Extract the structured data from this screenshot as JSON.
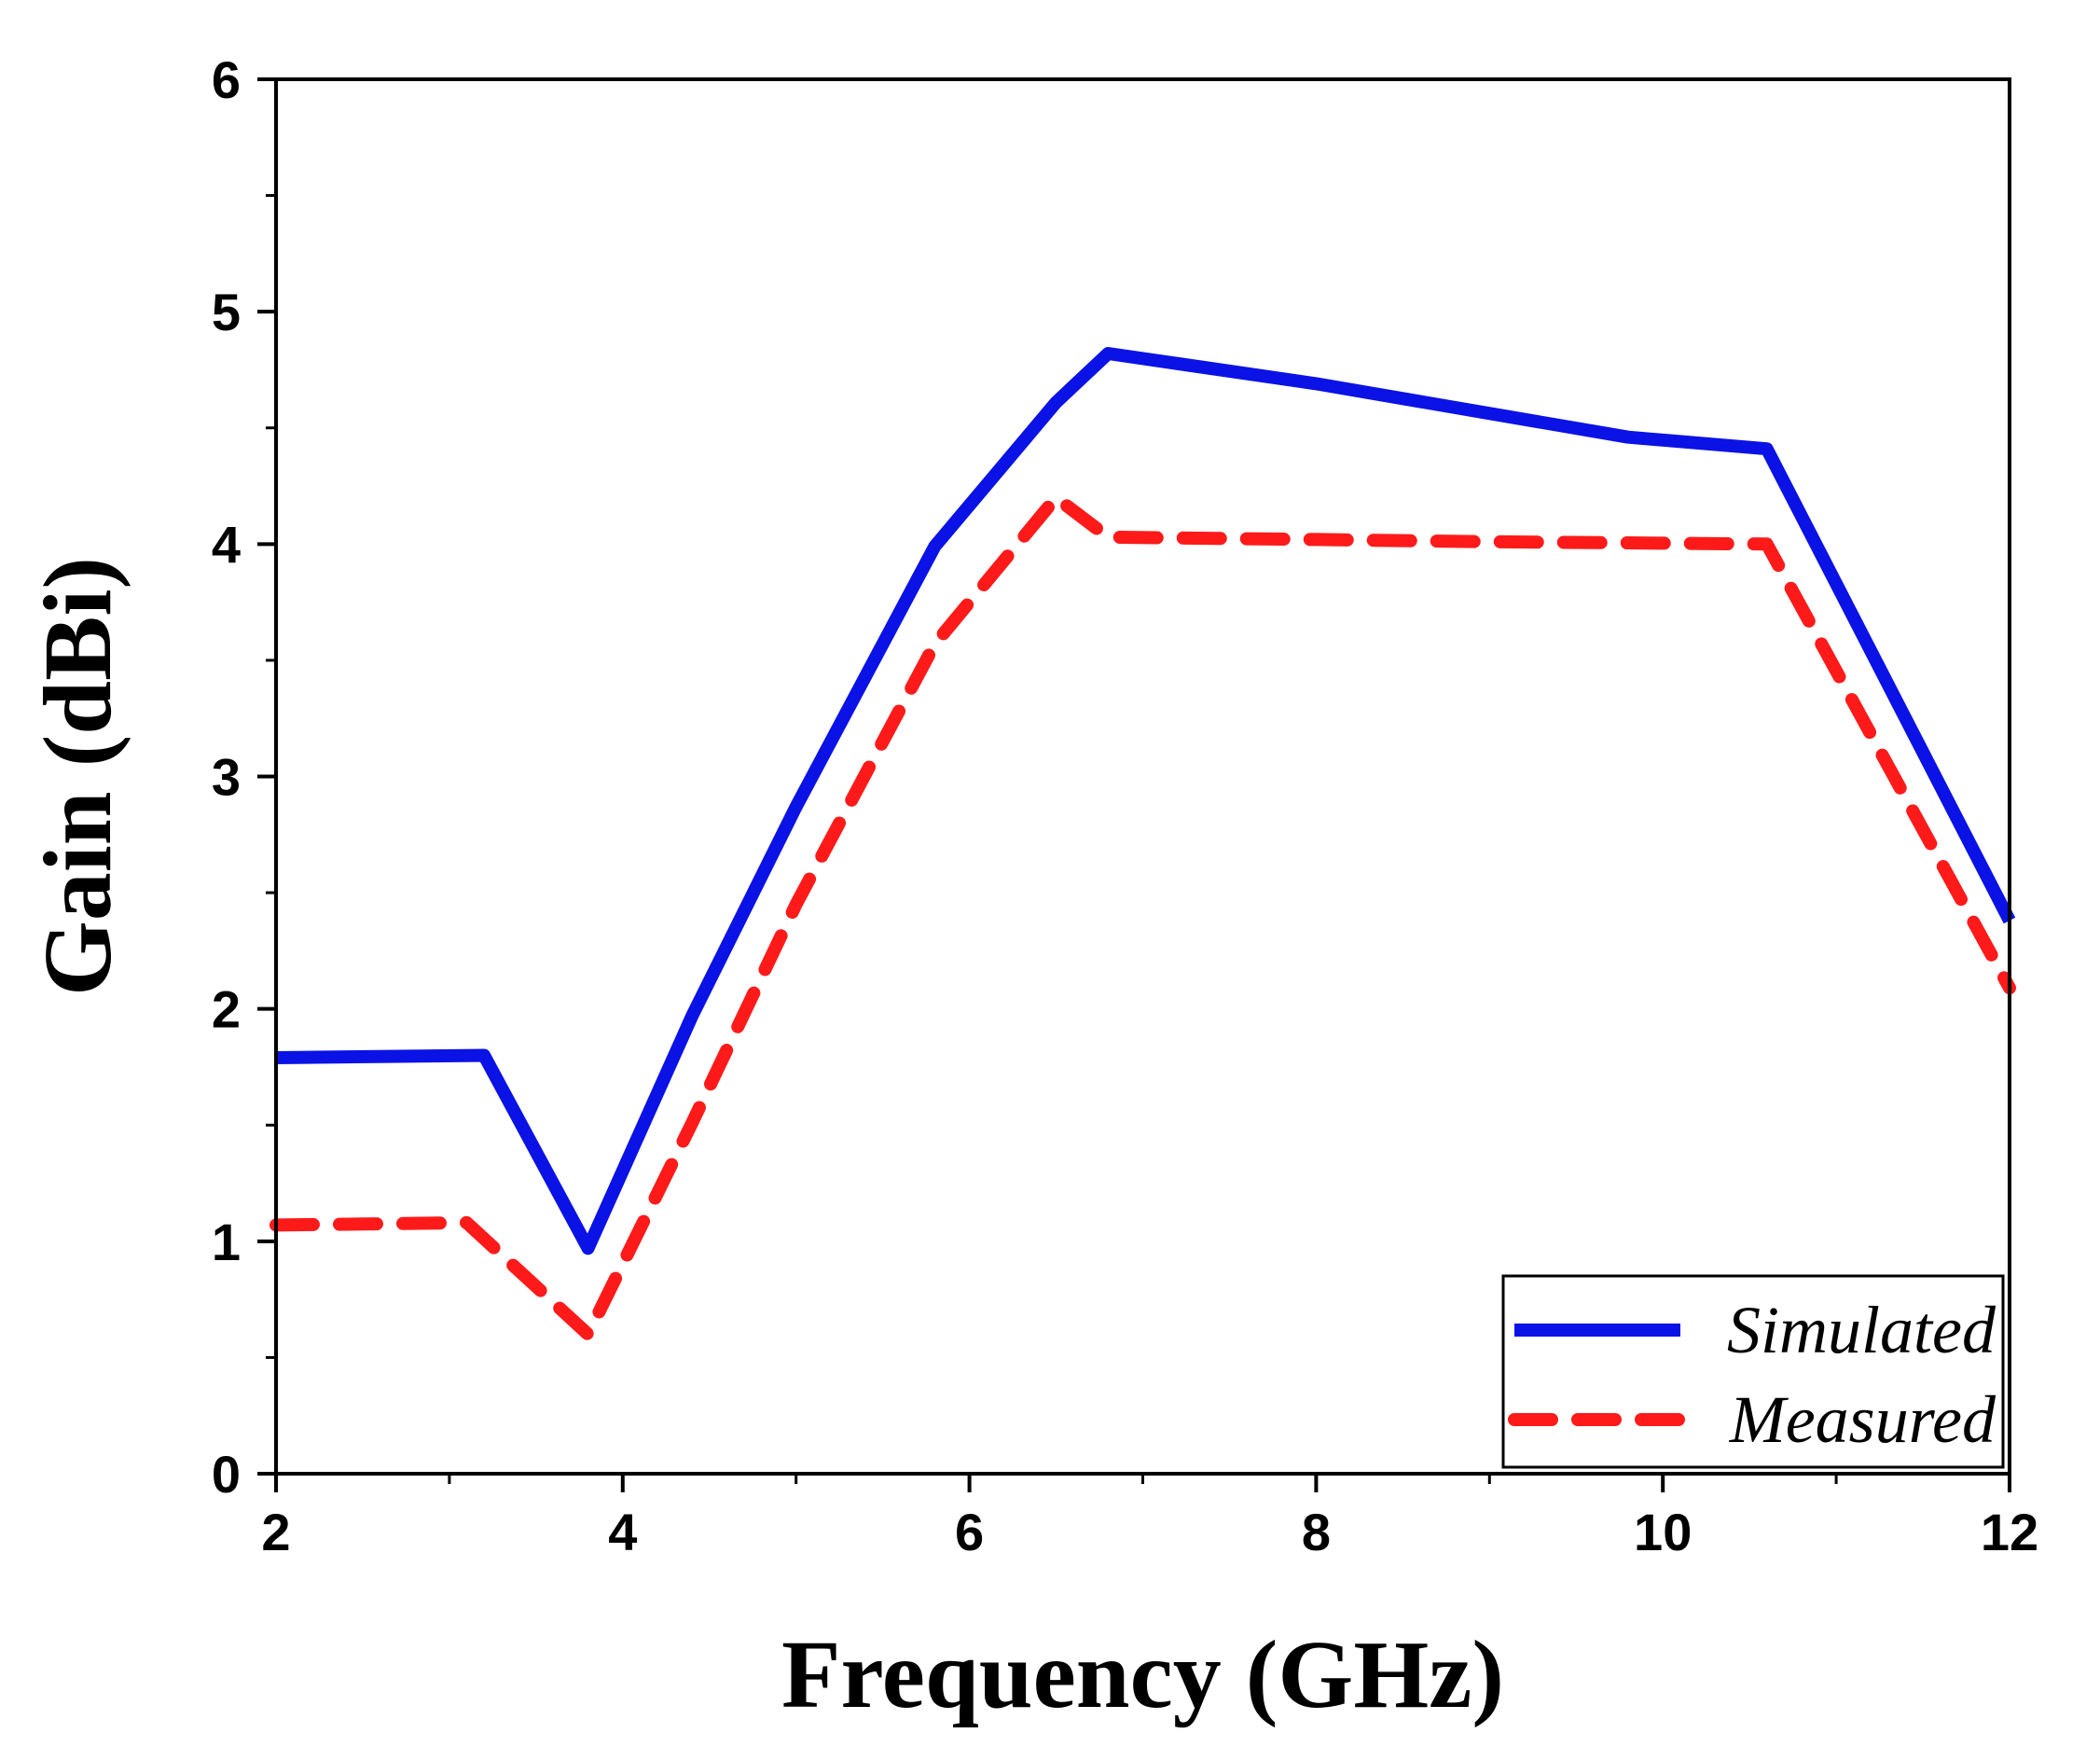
{
  "chart_data": {
    "type": "line",
    "title": "",
    "xlabel": "Frequency (GHz)",
    "ylabel": "Gain (dBi)",
    "xlim": [
      2,
      12
    ],
    "ylim": [
      0,
      6
    ],
    "x_ticks": [
      2,
      4,
      6,
      8,
      10,
      12
    ],
    "x_tick_labels": [
      "2",
      "4",
      "6",
      "8",
      "10",
      "12"
    ],
    "y_ticks": [
      0,
      1,
      2,
      3,
      4,
      5,
      6
    ],
    "y_tick_labels": [
      "0",
      "1",
      "2",
      "3",
      "4",
      "5",
      "6"
    ],
    "x_minor_step": 1,
    "y_minor_step": 0.5,
    "grid": false,
    "legend_position": "bottom-right",
    "series": [
      {
        "name": "Simulated",
        "color": "#0a12e6",
        "style": "solid",
        "x": [
          2.0,
          3.2,
          3.8,
          4.4,
          5.0,
          5.8,
          6.5,
          6.8,
          8.0,
          9.8,
          10.6,
          12.0
        ],
        "y": [
          1.79,
          1.8,
          0.97,
          1.97,
          2.87,
          3.99,
          4.61,
          4.82,
          4.69,
          4.46,
          4.41,
          2.38
        ]
      },
      {
        "name": "Measured",
        "color": "#ff1a1a",
        "style": "dashed",
        "x": [
          2.0,
          3.1,
          3.8,
          4.4,
          5.0,
          5.8,
          6.5,
          6.8,
          8.0,
          9.0,
          10.6,
          12.0
        ],
        "y": [
          1.07,
          1.08,
          0.6,
          1.51,
          2.45,
          3.57,
          4.2,
          4.03,
          4.02,
          4.01,
          4.0,
          2.09
        ]
      }
    ]
  }
}
